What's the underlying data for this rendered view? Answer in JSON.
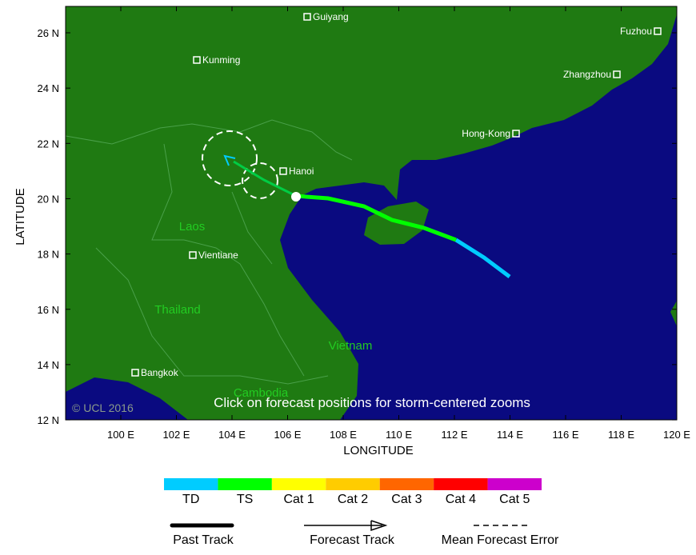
{
  "map": {
    "x_axis_label": "LONGITUDE",
    "y_axis_label": "LATITUDE",
    "x_tick_labels": [
      "100 E",
      "102 E",
      "104 E",
      "106 E",
      "108 E",
      "110 E",
      "112 E",
      "114 E",
      "116 E",
      "118 E",
      "120 E"
    ],
    "y_tick_labels": [
      "26 N",
      "24 N",
      "22 N",
      "20 N",
      "18 N",
      "16 N",
      "14 N",
      "12 N"
    ],
    "cities": [
      "Guiyang",
      "Kunming",
      "Fuzhou",
      "Zhangzhou",
      "Hong-Kong",
      "Hanoi",
      "Vientiane",
      "Bangkok"
    ],
    "countries": [
      "Laos",
      "Thailand",
      "Vietnam",
      "Cambodia"
    ],
    "note": "Click on forecast positions for storm-centered zooms",
    "copyright": "© UCL 2016"
  },
  "legend": {
    "categories": [
      {
        "label": "TD",
        "color": "#00ccff"
      },
      {
        "label": "TS",
        "color": "#00ff00"
      },
      {
        "label": "Cat 1",
        "color": "#ffff00"
      },
      {
        "label": "Cat 2",
        "color": "#ffcc00"
      },
      {
        "label": "Cat 3",
        "color": "#ff6600"
      },
      {
        "label": "Cat 4",
        "color": "#ff0000"
      },
      {
        "label": "Cat 5",
        "color": "#cc00cc"
      }
    ],
    "tracks": [
      "Past Track",
      "Forecast Track",
      "Mean Forecast Error"
    ]
  }
}
